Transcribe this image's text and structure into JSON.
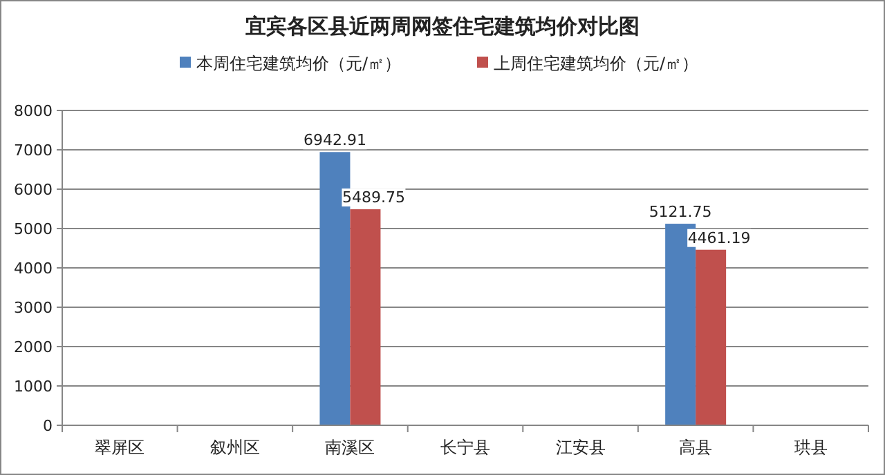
{
  "chart_data": {
    "type": "bar",
    "title": "宜宾各区县近两周网签住宅建筑均价对比图",
    "categories": [
      "翠屏区",
      "叙州区",
      "南溪区",
      "长宁县",
      "江安县",
      "高县",
      "珙县"
    ],
    "series": [
      {
        "name": "本周住宅建筑均价（元/㎡）",
        "color": "#4f81bd",
        "values": [
          null,
          null,
          6942.91,
          null,
          null,
          5121.75,
          null
        ]
      },
      {
        "name": "上周住宅建筑均价（元/㎡）",
        "color": "#c0504d",
        "values": [
          null,
          null,
          5489.75,
          null,
          null,
          4461.19,
          null
        ]
      }
    ],
    "ylim": [
      0,
      8000
    ],
    "yticks": [
      0,
      1000,
      2000,
      3000,
      4000,
      5000,
      6000,
      7000,
      8000
    ],
    "grid": "y",
    "legend": "top",
    "data_labels": true
  }
}
